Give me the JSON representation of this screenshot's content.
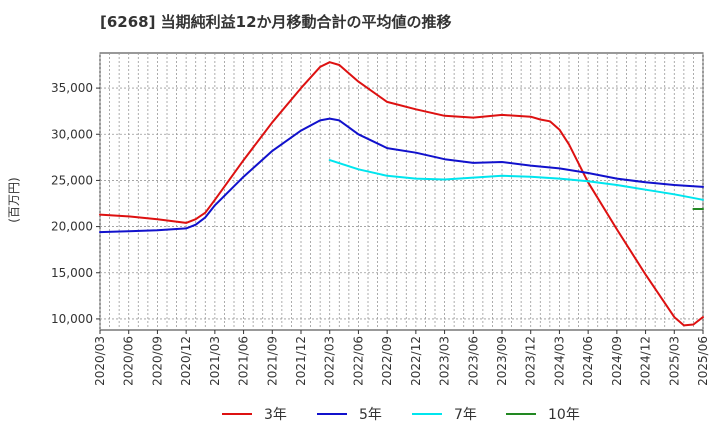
{
  "chart_data": {
    "type": "line",
    "title": "[6268]  当期純利益12か月移動合計の平均値の推移",
    "ylabel": "(百万円)",
    "xlabel": "",
    "ylim": [
      8800,
      38800
    ],
    "yticks": [
      10000,
      15000,
      20000,
      25000,
      30000,
      35000
    ],
    "ytick_labels": [
      "10,000",
      "15,000",
      "20,000",
      "25,000",
      "30,000",
      "35,000"
    ],
    "x_tick_labels": [
      "2020/03",
      "2020/06",
      "2020/09",
      "2020/12",
      "2021/03",
      "2021/06",
      "2021/09",
      "2021/12",
      "2022/03",
      "2022/06",
      "2022/09",
      "2022/12",
      "2023/03",
      "2023/06",
      "2023/09",
      "2023/12",
      "2024/03",
      "2024/06",
      "2024/09",
      "2024/12",
      "2025/03",
      "2025/06"
    ],
    "grid": true,
    "legend_position": "bottom",
    "series": [
      {
        "name": "3年",
        "color": "#dd1111",
        "values": [
          [
            "2020/03",
            21300
          ],
          [
            "2020/06",
            21100
          ],
          [
            "2020/09",
            20800
          ],
          [
            "2020/12",
            20400
          ],
          [
            "2021/01",
            20800
          ],
          [
            "2021/02",
            21500
          ],
          [
            "2021/03",
            22900
          ],
          [
            "2021/06",
            27200
          ],
          [
            "2021/09",
            31300
          ],
          [
            "2021/12",
            35000
          ],
          [
            "2022/02",
            37300
          ],
          [
            "2022/03",
            37800
          ],
          [
            "2022/04",
            37500
          ],
          [
            "2022/06",
            35700
          ],
          [
            "2022/09",
            33500
          ],
          [
            "2022/12",
            32700
          ],
          [
            "2023/03",
            32000
          ],
          [
            "2023/06",
            31800
          ],
          [
            "2023/09",
            32100
          ],
          [
            "2023/12",
            31900
          ],
          [
            "2024/01",
            31600
          ],
          [
            "2024/02",
            31400
          ],
          [
            "2024/03",
            30500
          ],
          [
            "2024/04",
            28900
          ],
          [
            "2024/06",
            24800
          ],
          [
            "2024/09",
            19700
          ],
          [
            "2024/12",
            14800
          ],
          [
            "2025/03",
            10200
          ],
          [
            "2025/04",
            9300
          ],
          [
            "2025/05",
            9400
          ],
          [
            "2025/06",
            10200
          ]
        ]
      },
      {
        "name": "5年",
        "color": "#1111cc",
        "values": [
          [
            "2020/03",
            19400
          ],
          [
            "2020/06",
            19500
          ],
          [
            "2020/09",
            19600
          ],
          [
            "2020/12",
            19800
          ],
          [
            "2021/01",
            20200
          ],
          [
            "2021/02",
            21000
          ],
          [
            "2021/03",
            22300
          ],
          [
            "2021/06",
            25400
          ],
          [
            "2021/09",
            28200
          ],
          [
            "2021/12",
            30400
          ],
          [
            "2022/02",
            31500
          ],
          [
            "2022/03",
            31700
          ],
          [
            "2022/04",
            31500
          ],
          [
            "2022/06",
            30000
          ],
          [
            "2022/09",
            28500
          ],
          [
            "2022/12",
            28000
          ],
          [
            "2023/03",
            27300
          ],
          [
            "2023/06",
            26900
          ],
          [
            "2023/09",
            27000
          ],
          [
            "2023/12",
            26600
          ],
          [
            "2024/03",
            26300
          ],
          [
            "2024/06",
            25800
          ],
          [
            "2024/09",
            25200
          ],
          [
            "2024/12",
            24800
          ],
          [
            "2025/03",
            24500
          ],
          [
            "2025/06",
            24300
          ]
        ]
      },
      {
        "name": "7年",
        "color": "#00e5ee",
        "values": [
          [
            "2022/03",
            27200
          ],
          [
            "2022/06",
            26200
          ],
          [
            "2022/09",
            25500
          ],
          [
            "2022/12",
            25200
          ],
          [
            "2023/03",
            25100
          ],
          [
            "2023/06",
            25300
          ],
          [
            "2023/09",
            25500
          ],
          [
            "2023/12",
            25400
          ],
          [
            "2024/03",
            25200
          ],
          [
            "2024/06",
            24900
          ],
          [
            "2024/09",
            24500
          ],
          [
            "2024/12",
            24000
          ],
          [
            "2025/03",
            23500
          ],
          [
            "2025/06",
            22900
          ]
        ]
      },
      {
        "name": "10年",
        "color": "#228822",
        "values": [
          [
            "2025/05",
            21900
          ],
          [
            "2025/06",
            21900
          ]
        ]
      }
    ]
  }
}
